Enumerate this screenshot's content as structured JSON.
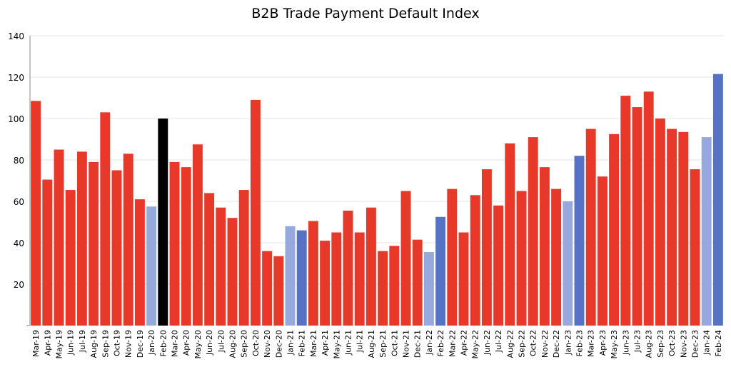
{
  "chart_data": {
    "type": "bar",
    "title": "B2B Trade Payment Default Index",
    "xlabel": "",
    "ylabel": "",
    "ylim": [
      0,
      140
    ],
    "yticks": [
      20,
      40,
      60,
      80,
      100,
      120,
      140
    ],
    "grid": true,
    "legend": "none",
    "categories": [
      "Mar-19",
      "Apr-19",
      "May-19",
      "Jun-19",
      "Jul-19",
      "Aug-19",
      "Sep-19",
      "Oct-19",
      "Nov-19",
      "Dec-19",
      "Jan-20",
      "Feb-20",
      "Mar-20",
      "Apr-20",
      "May-20",
      "Jun-20",
      "Jul-20",
      "Aug-20",
      "Sep-20",
      "Oct-20",
      "Nov-20",
      "Dec-20",
      "Jan-21",
      "Feb-21",
      "Mar-21",
      "Apr-21",
      "May-21",
      "Jun-21",
      "Jul-21",
      "Aug-21",
      "Sep-21",
      "Oct-21",
      "Nov-21",
      "Dec-21",
      "Jan-22",
      "Feb-22",
      "Mar-22",
      "Apr-22",
      "May-22",
      "Jun-22",
      "Jul-22",
      "Aug-22",
      "Sep-22",
      "Oct-22",
      "Nov-22",
      "Dec-22",
      "Jan-23",
      "Feb-23",
      "Mar-23",
      "Apr-23",
      "May-23",
      "Jun-23",
      "Jul-23",
      "Aug-23",
      "Sep-23",
      "Oct-23",
      "Nov-23",
      "Dec-23",
      "Jan-24",
      "Feb-24"
    ],
    "values": [
      108.5,
      70.5,
      85,
      65.5,
      84,
      79,
      103,
      75,
      83,
      61,
      57.5,
      100,
      79,
      76.5,
      87.5,
      64,
      57,
      52,
      65.5,
      109,
      36,
      33.5,
      48,
      46,
      50.5,
      41,
      45,
      55.5,
      45,
      57,
      36,
      38.5,
      65,
      41.5,
      35.5,
      52.5,
      66,
      45,
      63,
      75.5,
      58,
      88,
      65,
      91,
      76.5,
      66,
      60,
      82,
      95,
      72,
      92.5,
      111,
      105.5,
      113,
      100,
      95,
      93.5,
      75.5,
      91,
      121.5
    ],
    "bar_colors": [
      "#e8382a",
      "#e8382a",
      "#e8382a",
      "#e8382a",
      "#e8382a",
      "#e8382a",
      "#e8382a",
      "#e8382a",
      "#e8382a",
      "#e8382a",
      "#96a9dc",
      "#000000",
      "#e8382a",
      "#e8382a",
      "#e8382a",
      "#e8382a",
      "#e8382a",
      "#e8382a",
      "#e8382a",
      "#e8382a",
      "#e8382a",
      "#e8382a",
      "#96a9dc",
      "#5572c4",
      "#e8382a",
      "#e8382a",
      "#e8382a",
      "#e8382a",
      "#e8382a",
      "#e8382a",
      "#e8382a",
      "#e8382a",
      "#e8382a",
      "#e8382a",
      "#96a9dc",
      "#5572c4",
      "#e8382a",
      "#e8382a",
      "#e8382a",
      "#e8382a",
      "#e8382a",
      "#e8382a",
      "#e8382a",
      "#e8382a",
      "#e8382a",
      "#e8382a",
      "#96a9dc",
      "#5572c4",
      "#e8382a",
      "#e8382a",
      "#e8382a",
      "#e8382a",
      "#e8382a",
      "#e8382a",
      "#e8382a",
      "#e8382a",
      "#e8382a",
      "#e8382a",
      "#96a9dc",
      "#5572c4"
    ],
    "colors": {
      "grid": "#e6e6e6",
      "axis": "#888888",
      "text": "#000000"
    }
  }
}
